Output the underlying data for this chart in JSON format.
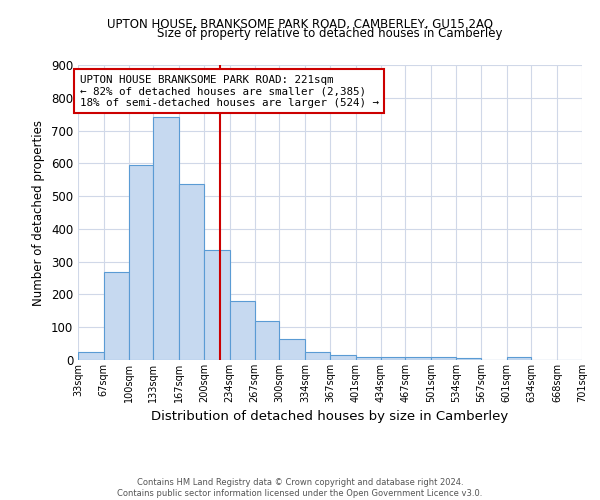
{
  "title": "UPTON HOUSE, BRANKSOME PARK ROAD, CAMBERLEY, GU15 2AQ",
  "subtitle": "Size of property relative to detached houses in Camberley",
  "xlabel": "Distribution of detached houses by size in Camberley",
  "ylabel": "Number of detached properties",
  "footnote1": "Contains HM Land Registry data © Crown copyright and database right 2024.",
  "footnote2": "Contains public sector information licensed under the Open Government Licence v3.0.",
  "bin_edges": [
    33,
    67,
    100,
    133,
    167,
    200,
    234,
    267,
    300,
    334,
    367,
    401,
    434,
    467,
    501,
    534,
    567,
    601,
    634,
    668,
    701
  ],
  "bar_heights": [
    25,
    270,
    595,
    740,
    538,
    335,
    180,
    120,
    65,
    25,
    15,
    10,
    8,
    8,
    8,
    5,
    0,
    8,
    0,
    0
  ],
  "bar_color": "#c6d9f0",
  "bar_edge_color": "#5a9bd4",
  "vline_x": 221,
  "vline_color": "#cc0000",
  "annotation_text": "UPTON HOUSE BRANKSOME PARK ROAD: 221sqm\n← 82% of detached houses are smaller (2,385)\n18% of semi-detached houses are larger (524) →",
  "annotation_box_color": "#ffffff",
  "annotation_box_edge_color": "#cc0000",
  "ylim": [
    0,
    900
  ],
  "yticks": [
    0,
    100,
    200,
    300,
    400,
    500,
    600,
    700,
    800,
    900
  ],
  "background_color": "#ffffff",
  "grid_color": "#d0d8e8"
}
